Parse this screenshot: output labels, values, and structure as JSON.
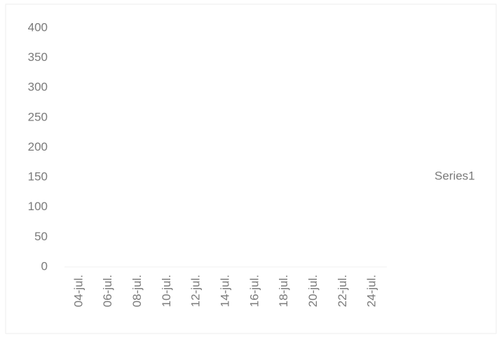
{
  "chart_data": {
    "type": "line",
    "categories": [
      "04-jul.",
      "06-jul.",
      "08-jul.",
      "10-jul.",
      "12-jul.",
      "14-jul.",
      "16-jul.",
      "18-jul.",
      "20-jul.",
      "22-jul.",
      "24-jul."
    ],
    "series": [
      {
        "name": "Series1",
        "color": "#4472c4",
        "values": [
          null,
          null,
          null,
          null,
          null,
          null,
          null,
          null,
          null,
          null,
          null
        ]
      }
    ],
    "ylim": [
      0,
      400
    ],
    "yticks": [
      0,
      50,
      100,
      150,
      200,
      250,
      300,
      350,
      400
    ],
    "grid": false,
    "legend": "right"
  }
}
